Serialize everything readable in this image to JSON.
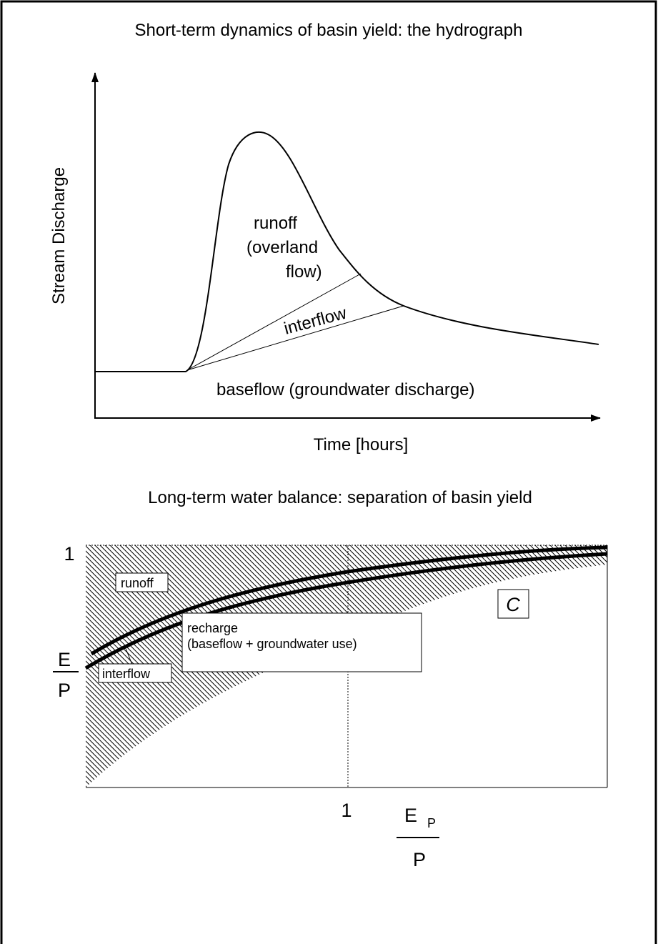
{
  "top": {
    "title": "Short-term dynamics of basin yield: the hydrograph",
    "y_axis_label": "Stream Discharge",
    "x_axis_label": "Time [hours]",
    "labels": {
      "runoff": [
        "runoff",
        "(overland",
        "flow)"
      ],
      "interflow": "interflow",
      "baseflow": "baseflow (groundwater discharge)"
    }
  },
  "bottom": {
    "title": "Long-term water balance: separation of basin yield",
    "y_tick": "1",
    "y_label": {
      "numerator": "E",
      "denominator": "P"
    },
    "x_tick": "1",
    "x_label": {
      "numerator": "E",
      "subscript": "P",
      "denominator": "P"
    },
    "labels": {
      "runoff": "runoff",
      "c": "C",
      "recharge": [
        "recharge",
        "(baseflow + groundwater use)"
      ],
      "interflow": "interflow"
    }
  }
}
